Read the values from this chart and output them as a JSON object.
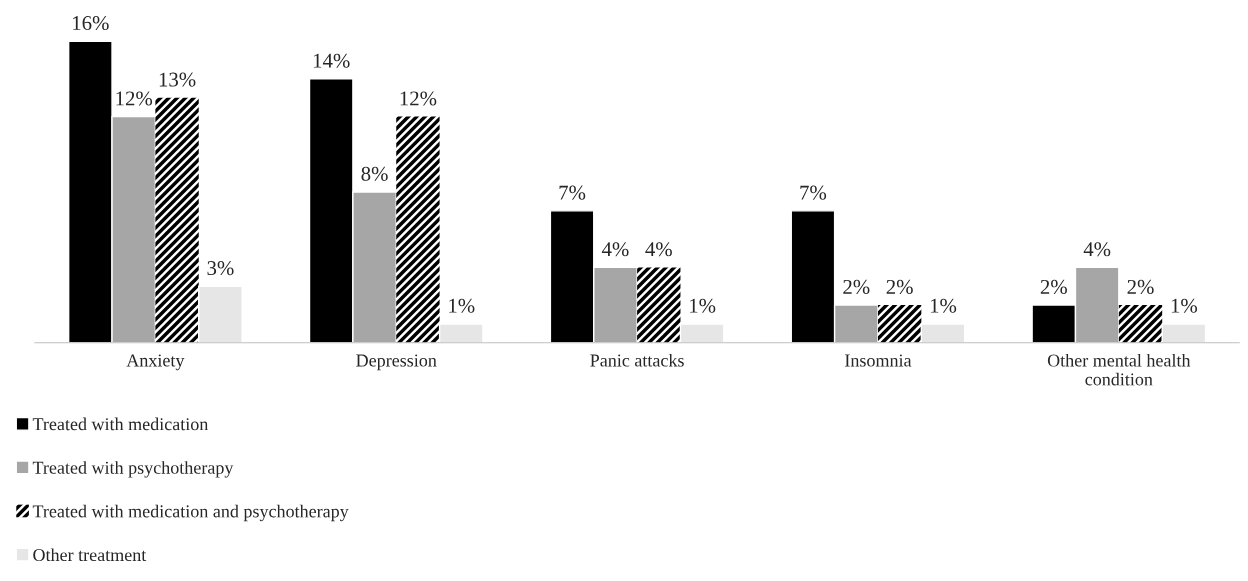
{
  "chart_data": {
    "type": "bar",
    "categories": [
      "Anxiety",
      "Depression",
      "Panic attacks",
      "Insomnia",
      "Other mental health\ncondition"
    ],
    "series": [
      {
        "name": "Treated with medication",
        "color": "#000000",
        "values": [
          16,
          14,
          7,
          7,
          2
        ],
        "value_labels": [
          "16%",
          "14%",
          "7%",
          "7%",
          "2%"
        ]
      },
      {
        "name": "Treated with psychotherapy",
        "color": "#a6a6a6",
        "values": [
          12,
          8,
          4,
          2,
          4
        ],
        "value_labels": [
          "12%",
          "8%",
          "4%",
          "2%",
          "4%"
        ]
      },
      {
        "name": "Treated with medication and psychotherapy",
        "color": "#000000",
        "values": [
          13,
          12,
          4,
          2,
          2
        ],
        "value_labels": [
          "13%",
          "12%",
          "4%",
          "2%",
          "2%"
        ]
      },
      {
        "name": "Other treatment",
        "color": "#e6e6e6",
        "values": [
          3,
          1,
          1,
          1,
          1
        ],
        "value_labels": [
          "3%",
          "1%",
          "1%",
          "1%",
          "1%"
        ]
      }
    ],
    "legend": "bottom left",
    "grid": false
  }
}
